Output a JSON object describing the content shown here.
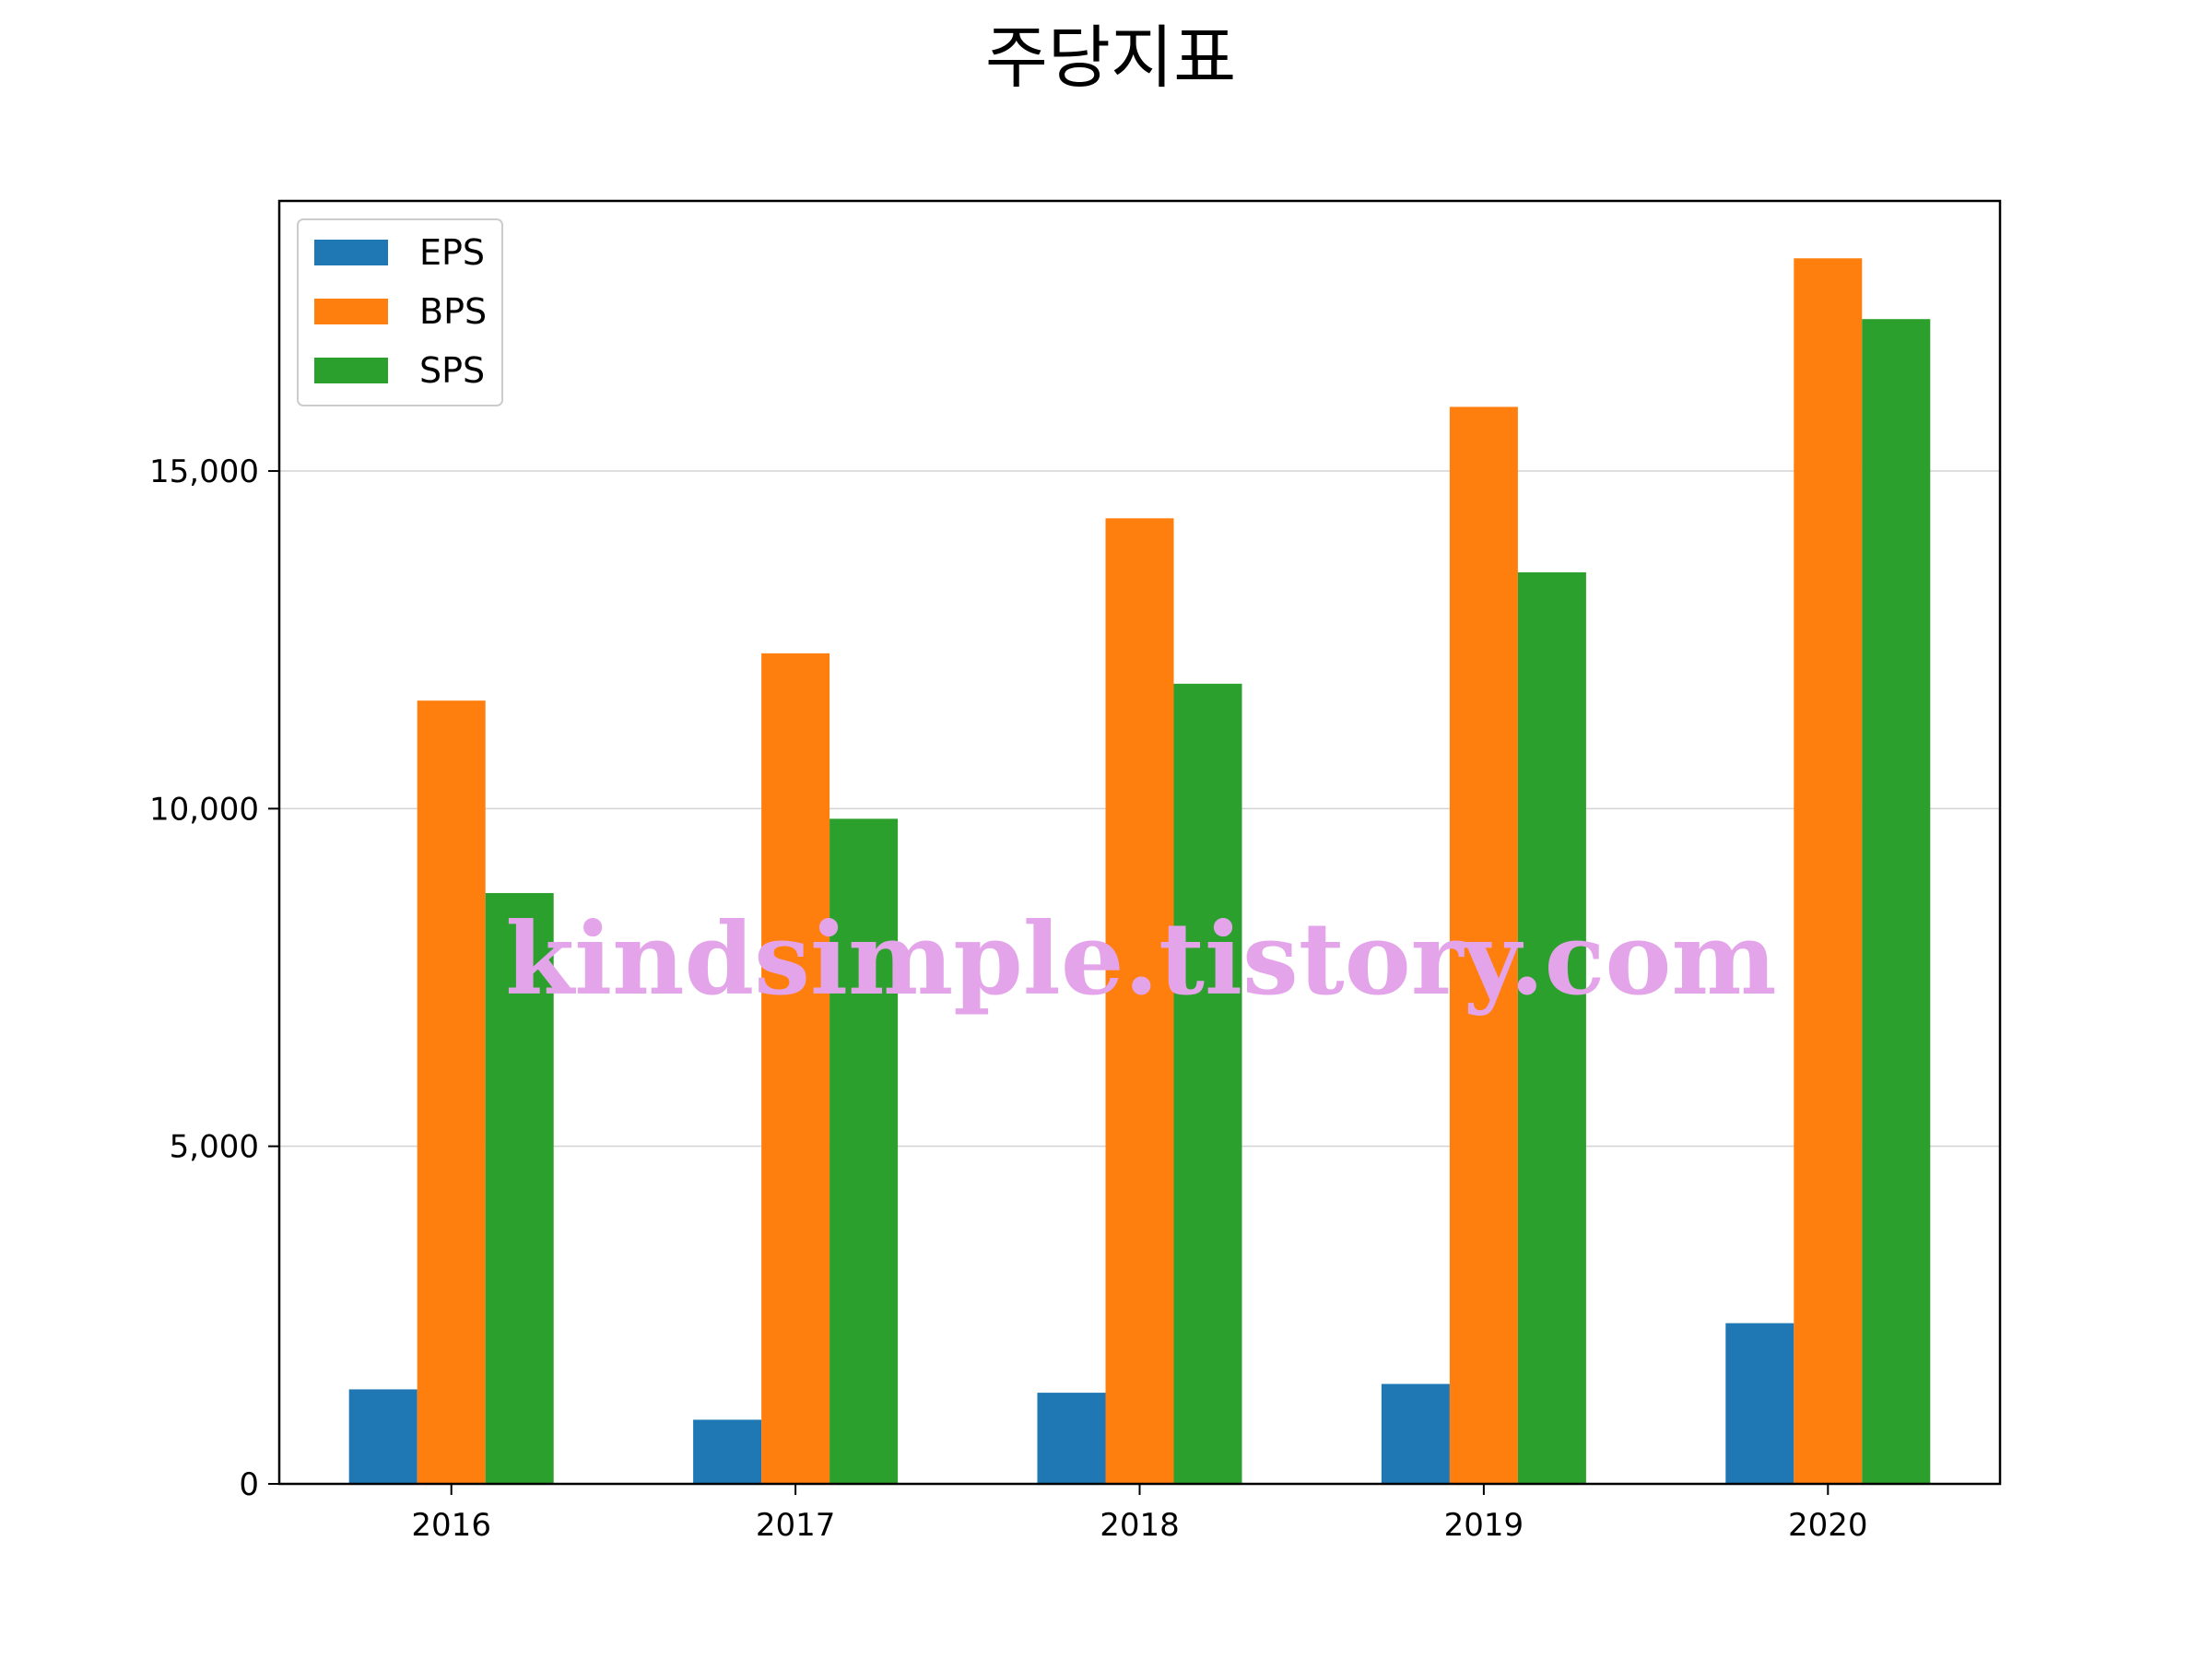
{
  "chart_data": {
    "type": "bar",
    "title": "주당지표",
    "xlabel": "",
    "ylabel": "",
    "categories": [
      "2016",
      "2017",
      "2018",
      "2019",
      "2020"
    ],
    "series": [
      {
        "name": "EPS",
        "color": "#1f77b4",
        "values": [
          1400,
          950,
          1350,
          1480,
          2380
        ]
      },
      {
        "name": "BPS",
        "color": "#ff7f0e",
        "values": [
          11600,
          12300,
          14300,
          15950,
          18150
        ]
      },
      {
        "name": "SPS",
        "color": "#2ca02c",
        "values": [
          8750,
          9850,
          11850,
          13500,
          17250
        ]
      }
    ],
    "ylim": [
      0,
      19000
    ],
    "yticks": [
      0,
      5000,
      10000,
      15000
    ],
    "ytick_labels": [
      "0",
      "5,000",
      "10,000",
      "15,000"
    ],
    "grid": "y",
    "legend_position": "top-left",
    "watermark": "kindsimple.tistory.com"
  }
}
